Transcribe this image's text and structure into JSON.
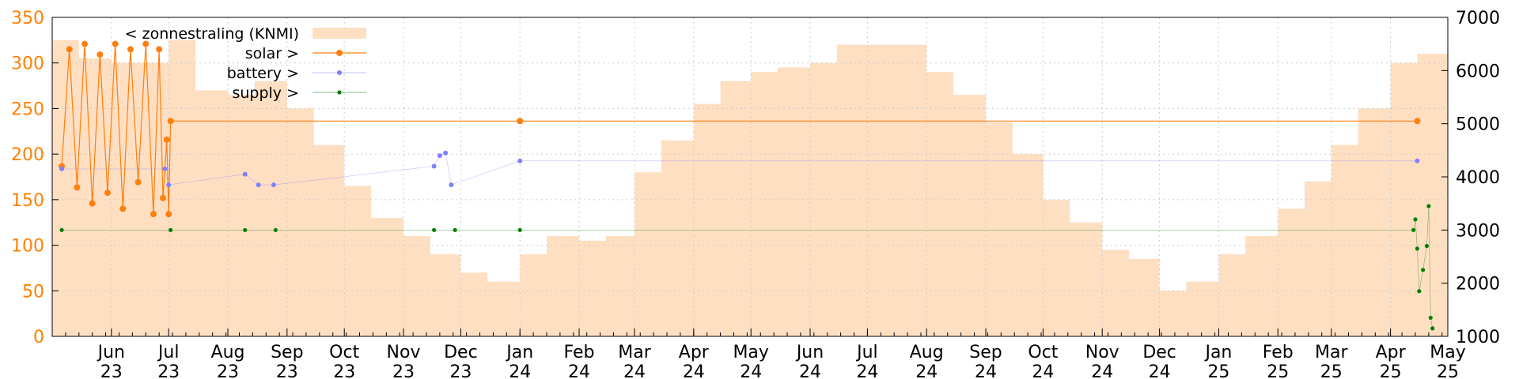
{
  "chart_data": {
    "type": "line",
    "title": "",
    "xlabel": "",
    "ylabel": "",
    "x_range": [
      "2023-05-01",
      "2025-05-01"
    ],
    "ylim_left": [
      0,
      350
    ],
    "ylim_right": [
      1000,
      7000
    ],
    "grid": true,
    "legend_position": "top-left",
    "colors": {
      "sun": "#ffdfc2",
      "solar": "#ff7f0e",
      "battery": "#8080ff",
      "supply": "#008000",
      "left_ticks": "#ff8000",
      "right_ticks": "#000000",
      "grid": "#cccccc"
    },
    "y_ticks_left": [
      "0",
      "50",
      "100",
      "150",
      "200",
      "250",
      "300",
      "350"
    ],
    "y_ticks_right": [
      "1000",
      "2000",
      "3000",
      "4000",
      "5000",
      "6000",
      "7000"
    ],
    "x_ticks": [
      {
        "date": "2023-06-01",
        "month": "Jun",
        "year": "23"
      },
      {
        "date": "2023-07-01",
        "month": "Jul",
        "year": "23"
      },
      {
        "date": "2023-08-01",
        "month": "Aug",
        "year": "23"
      },
      {
        "date": "2023-09-01",
        "month": "Sep",
        "year": "23"
      },
      {
        "date": "2023-10-01",
        "month": "Oct",
        "year": "23"
      },
      {
        "date": "2023-11-01",
        "month": "Nov",
        "year": "23"
      },
      {
        "date": "2023-12-01",
        "month": "Dec",
        "year": "23"
      },
      {
        "date": "2024-01-01",
        "month": "Jan",
        "year": "24"
      },
      {
        "date": "2024-02-01",
        "month": "Feb",
        "year": "24"
      },
      {
        "date": "2024-03-01",
        "month": "Mar",
        "year": "24"
      },
      {
        "date": "2024-04-01",
        "month": "Apr",
        "year": "24"
      },
      {
        "date": "2024-05-01",
        "month": "May",
        "year": "24"
      },
      {
        "date": "2024-06-01",
        "month": "Jun",
        "year": "24"
      },
      {
        "date": "2024-07-01",
        "month": "Jul",
        "year": "24"
      },
      {
        "date": "2024-08-01",
        "month": "Aug",
        "year": "24"
      },
      {
        "date": "2024-09-01",
        "month": "Sep",
        "year": "24"
      },
      {
        "date": "2024-10-01",
        "month": "Oct",
        "year": "24"
      },
      {
        "date": "2024-11-01",
        "month": "Nov",
        "year": "24"
      },
      {
        "date": "2024-12-01",
        "month": "Dec",
        "year": "24"
      },
      {
        "date": "2025-01-01",
        "month": "Jan",
        "year": "25"
      },
      {
        "date": "2025-02-01",
        "month": "Feb",
        "year": "25"
      },
      {
        "date": "2025-03-01",
        "month": "Mar",
        "year": "25"
      },
      {
        "date": "2025-04-01",
        "month": "Apr",
        "year": "25"
      },
      {
        "date": "2025-05-01",
        "month": "May",
        "year": "25"
      }
    ],
    "series": [
      {
        "name": "< zonnestraling (KNMI)",
        "axis": "left",
        "style": "area",
        "points": [
          [
            "2023-05-01",
            325
          ],
          [
            "2023-05-15",
            305
          ],
          [
            "2023-06-01",
            300
          ],
          [
            "2023-06-15",
            300
          ],
          [
            "2023-07-01",
            325
          ],
          [
            "2023-07-15",
            270
          ],
          [
            "2023-08-01",
            265
          ],
          [
            "2023-08-15",
            280
          ],
          [
            "2023-09-01",
            250
          ],
          [
            "2023-09-15",
            210
          ],
          [
            "2023-10-01",
            165
          ],
          [
            "2023-10-15",
            130
          ],
          [
            "2023-11-01",
            110
          ],
          [
            "2023-11-15",
            90
          ],
          [
            "2023-12-01",
            70
          ],
          [
            "2023-12-15",
            60
          ],
          [
            "2024-01-01",
            90
          ],
          [
            "2024-01-15",
            110
          ],
          [
            "2024-02-01",
            105
          ],
          [
            "2024-02-15",
            110
          ],
          [
            "2024-03-01",
            180
          ],
          [
            "2024-03-15",
            215
          ],
          [
            "2024-04-01",
            255
          ],
          [
            "2024-04-15",
            280
          ],
          [
            "2024-05-01",
            290
          ],
          [
            "2024-05-15",
            295
          ],
          [
            "2024-06-01",
            300
          ],
          [
            "2024-06-15",
            320
          ],
          [
            "2024-07-01",
            320
          ],
          [
            "2024-07-15",
            320
          ],
          [
            "2024-08-01",
            290
          ],
          [
            "2024-08-15",
            265
          ],
          [
            "2024-09-01",
            235
          ],
          [
            "2024-09-15",
            200
          ],
          [
            "2024-10-01",
            150
          ],
          [
            "2024-10-15",
            125
          ],
          [
            "2024-11-01",
            95
          ],
          [
            "2024-11-15",
            85
          ],
          [
            "2024-12-01",
            50
          ],
          [
            "2024-12-15",
            60
          ],
          [
            "2025-01-01",
            90
          ],
          [
            "2025-01-15",
            110
          ],
          [
            "2025-02-01",
            140
          ],
          [
            "2025-02-15",
            170
          ],
          [
            "2025-03-01",
            210
          ],
          [
            "2025-03-15",
            250
          ],
          [
            "2025-04-01",
            300
          ],
          [
            "2025-04-15",
            310
          ],
          [
            "2025-05-01",
            335
          ]
        ]
      },
      {
        "name": "solar >",
        "axis": "right",
        "style": "line-points",
        "points": [
          [
            "2023-05-06",
            4200
          ],
          [
            "2023-05-10",
            6400
          ],
          [
            "2023-05-14",
            3800
          ],
          [
            "2023-05-18",
            6500
          ],
          [
            "2023-05-22",
            3500
          ],
          [
            "2023-05-26",
            6300
          ],
          [
            "2023-05-30",
            3700
          ],
          [
            "2023-06-03",
            6500
          ],
          [
            "2023-06-07",
            3400
          ],
          [
            "2023-06-11",
            6400
          ],
          [
            "2023-06-15",
            3900
          ],
          [
            "2023-06-19",
            6500
          ],
          [
            "2023-06-23",
            3300
          ],
          [
            "2023-06-26",
            6400
          ],
          [
            "2023-06-28",
            3600
          ],
          [
            "2023-06-30",
            4700
          ],
          [
            "2023-07-01",
            3300
          ],
          [
            "2023-07-02",
            5050
          ],
          [
            "2024-01-01",
            5050
          ],
          [
            "2025-04-15",
            5050
          ]
        ]
      },
      {
        "name": "battery >",
        "axis": "right",
        "style": "line-points",
        "points": [
          [
            "2023-05-06",
            4150
          ],
          [
            "2023-06-29",
            4150
          ],
          [
            "2023-07-01",
            3850
          ],
          [
            "2023-08-10",
            4050
          ],
          [
            "2023-08-17",
            3850
          ],
          [
            "2023-08-25",
            3850
          ],
          [
            "2023-11-17",
            4200
          ],
          [
            "2023-11-20",
            4400
          ],
          [
            "2023-11-23",
            4450
          ],
          [
            "2023-11-26",
            3850
          ],
          [
            "2024-01-01",
            4300
          ],
          [
            "2025-04-15",
            4300
          ]
        ]
      },
      {
        "name": "supply >",
        "axis": "right",
        "style": "line-points",
        "points": [
          [
            "2023-05-06",
            3000
          ],
          [
            "2023-07-02",
            3000
          ],
          [
            "2023-08-10",
            3000
          ],
          [
            "2023-08-26",
            3000
          ],
          [
            "2023-11-17",
            3000
          ],
          [
            "2023-11-28",
            3000
          ],
          [
            "2024-01-01",
            3000
          ],
          [
            "2025-04-13",
            3000
          ],
          [
            "2025-04-14",
            3200
          ],
          [
            "2025-04-15",
            2650
          ],
          [
            "2025-04-16",
            1850
          ],
          [
            "2025-04-18",
            2250
          ],
          [
            "2025-04-20",
            2700
          ],
          [
            "2025-04-21",
            3450
          ],
          [
            "2025-04-22",
            1350
          ],
          [
            "2025-04-23",
            1150
          ]
        ]
      }
    ]
  }
}
